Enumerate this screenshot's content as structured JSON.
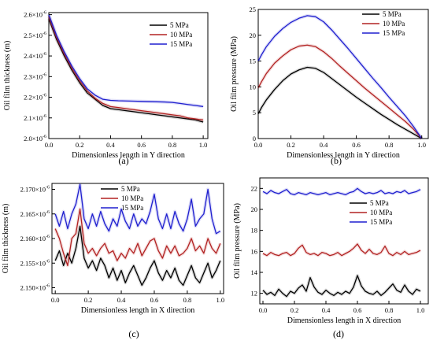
{
  "figure": {
    "panels": [
      {
        "id": "a",
        "label": "(a)"
      },
      {
        "id": "b",
        "label": "(b)"
      },
      {
        "id": "c",
        "label": "(c)"
      },
      {
        "id": "d",
        "label": "(d)"
      }
    ]
  },
  "chart_data": [
    {
      "type": "line",
      "panel": "(a)",
      "xlabel": "Dimensionless length in Y direction",
      "ylabel": "Oil film thickness (m)",
      "xlim": [
        0,
        1.03
      ],
      "ylim": [
        2.0,
        2.61
      ],
      "x_ticks": [
        0,
        0.2,
        0.4,
        0.6,
        0.8,
        1.0
      ],
      "x_tick_labels": [
        "0.0",
        "0.2",
        "0.4",
        "0.6",
        "0.8",
        "1.0"
      ],
      "y_ticks": [
        2.0,
        2.1,
        2.2,
        2.3,
        2.4,
        2.5,
        2.6
      ],
      "y_tick_mantissas": [
        "2.0×10",
        "2.1×10",
        "2.2×10",
        "2.3×10",
        "2.4×10",
        "2.5×10",
        "2.6×10"
      ],
      "y_tick_exponent": "-6",
      "legend_position": "top-right",
      "colors": [
        "#000000",
        "#b22222",
        "#1f1fcf"
      ],
      "series": [
        {
          "name": "5 MPa",
          "x": [
            0,
            0.05,
            0.1,
            0.15,
            0.2,
            0.25,
            0.3,
            0.35,
            0.4,
            0.45,
            0.5,
            0.55,
            0.6,
            0.65,
            0.7,
            0.75,
            0.8,
            0.85,
            0.9,
            0.95,
            1.0
          ],
          "values": [
            2.58,
            2.48,
            2.4,
            2.33,
            2.27,
            2.22,
            2.19,
            2.16,
            2.145,
            2.14,
            2.135,
            2.13,
            2.125,
            2.12,
            2.115,
            2.11,
            2.105,
            2.1,
            2.095,
            2.09,
            2.08
          ]
        },
        {
          "name": "10 MPa",
          "x": [
            0,
            0.05,
            0.1,
            0.15,
            0.2,
            0.25,
            0.3,
            0.35,
            0.4,
            0.45,
            0.5,
            0.55,
            0.6,
            0.65,
            0.7,
            0.75,
            0.8,
            0.85,
            0.9,
            0.95,
            1.0
          ],
          "values": [
            2.59,
            2.49,
            2.41,
            2.34,
            2.28,
            2.23,
            2.195,
            2.17,
            2.155,
            2.15,
            2.145,
            2.14,
            2.135,
            2.13,
            2.125,
            2.12,
            2.115,
            2.11,
            2.1,
            2.095,
            2.09
          ]
        },
        {
          "name": "15 MPa",
          "x": [
            0,
            0.05,
            0.1,
            0.15,
            0.2,
            0.25,
            0.3,
            0.35,
            0.4,
            0.45,
            0.5,
            0.55,
            0.6,
            0.65,
            0.7,
            0.75,
            0.8,
            0.85,
            0.9,
            0.95,
            1.0
          ],
          "values": [
            2.6,
            2.5,
            2.42,
            2.35,
            2.29,
            2.24,
            2.21,
            2.19,
            2.185,
            2.183,
            2.182,
            2.181,
            2.18,
            2.179,
            2.178,
            2.177,
            2.175,
            2.17,
            2.165,
            2.16,
            2.155
          ]
        }
      ]
    },
    {
      "type": "line",
      "panel": "(b)",
      "xlabel": "Dimensionless length in Y direction",
      "ylabel": "Oil film pressure (MPa)",
      "xlim": [
        0,
        1.04
      ],
      "ylim": [
        0,
        25
      ],
      "x_ticks": [
        0,
        0.2,
        0.4,
        0.6,
        0.8,
        1.0
      ],
      "x_tick_labels": [
        "0.0",
        "0.2",
        "0.4",
        "0.6",
        "0.8",
        "1.0"
      ],
      "y_ticks": [
        0,
        5,
        10,
        15,
        20,
        25
      ],
      "y_tick_labels": [
        "0",
        "5",
        "10",
        "15",
        "20",
        "25"
      ],
      "legend_position": "top-right",
      "colors": [
        "#000000",
        "#b22222",
        "#1f1fcf"
      ],
      "series": [
        {
          "name": "5 MPa",
          "x": [
            0,
            0.02,
            0.05,
            0.1,
            0.15,
            0.2,
            0.25,
            0.3,
            0.35,
            0.4,
            0.45,
            0.5,
            0.55,
            0.6,
            0.65,
            0.7,
            0.75,
            0.8,
            0.85,
            0.9,
            0.95,
            1.0
          ],
          "values": [
            4.8,
            6.0,
            7.5,
            9.5,
            11.2,
            12.5,
            13.3,
            13.8,
            13.6,
            12.8,
            11.6,
            10.4,
            9.2,
            8.0,
            6.9,
            5.8,
            4.7,
            3.7,
            2.7,
            1.8,
            0.9,
            0
          ]
        },
        {
          "name": "10 MPa",
          "x": [
            0,
            0.02,
            0.05,
            0.1,
            0.15,
            0.2,
            0.25,
            0.3,
            0.35,
            0.4,
            0.45,
            0.5,
            0.55,
            0.6,
            0.65,
            0.7,
            0.75,
            0.8,
            0.85,
            0.9,
            0.95,
            1.0
          ],
          "values": [
            9.8,
            11.0,
            12.6,
            14.6,
            16.0,
            17.2,
            17.9,
            18.1,
            17.8,
            16.8,
            15.5,
            14.0,
            12.6,
            11.2,
            9.8,
            8.5,
            7.2,
            5.9,
            4.6,
            3.3,
            1.8,
            0
          ]
        },
        {
          "name": "15 MPa",
          "x": [
            0,
            0.02,
            0.05,
            0.1,
            0.15,
            0.2,
            0.25,
            0.3,
            0.35,
            0.4,
            0.45,
            0.5,
            0.55,
            0.6,
            0.65,
            0.7,
            0.75,
            0.8,
            0.85,
            0.9,
            0.95,
            1.0
          ],
          "values": [
            15.0,
            16.2,
            17.8,
            19.8,
            21.3,
            22.5,
            23.3,
            23.8,
            23.6,
            22.6,
            21.0,
            19.2,
            17.4,
            15.5,
            13.6,
            11.7,
            9.9,
            8.0,
            6.2,
            4.4,
            2.3,
            0
          ]
        }
      ]
    },
    {
      "type": "line",
      "panel": "(c)",
      "xlabel": "Dimensionless length in X direction",
      "ylabel": "Oil film thickness (m)",
      "xlim": [
        -0.02,
        1.02
      ],
      "ylim": [
        2.1488,
        2.1712
      ],
      "x_ticks": [
        0,
        0.2,
        0.4,
        0.6,
        0.8,
        1.0
      ],
      "x_tick_labels": [
        "0.0",
        "0.2",
        "0.4",
        "0.6",
        "0.8",
        "1.0"
      ],
      "y_ticks": [
        2.15,
        2.155,
        2.16,
        2.165,
        2.17
      ],
      "y_tick_mantissas": [
        "2.150×10",
        "2.155×10",
        "2.160×10",
        "2.165×10",
        "2.170×10"
      ],
      "y_tick_exponent": "-6",
      "legend_position": "top-right",
      "colors": [
        "#000000",
        "#b22222",
        "#1f1fcf"
      ],
      "series": [
        {
          "name": "5 MPa",
          "x": [
            0,
            0.025,
            0.05,
            0.075,
            0.1,
            0.125,
            0.15,
            0.175,
            0.2,
            0.225,
            0.25,
            0.275,
            0.3,
            0.325,
            0.35,
            0.375,
            0.4,
            0.425,
            0.45,
            0.475,
            0.5,
            0.525,
            0.55,
            0.575,
            0.6,
            0.625,
            0.65,
            0.675,
            0.7,
            0.725,
            0.75,
            0.775,
            0.8,
            0.825,
            0.85,
            0.875,
            0.9,
            0.925,
            0.95,
            0.975,
            1.0
          ],
          "values": [
            2.1555,
            2.1575,
            2.1545,
            2.157,
            2.155,
            2.158,
            2.1625,
            2.156,
            2.154,
            2.1555,
            2.1535,
            2.156,
            2.1545,
            2.152,
            2.154,
            2.1515,
            2.1535,
            2.151,
            2.153,
            2.1545,
            2.1525,
            2.1505,
            2.152,
            2.154,
            2.1555,
            2.153,
            2.1515,
            2.1535,
            2.152,
            2.154,
            2.1515,
            2.1505,
            2.1525,
            2.1545,
            2.152,
            2.151,
            2.153,
            2.155,
            2.152,
            2.1535,
            2.1555
          ]
        },
        {
          "name": "10 MPa",
          "x": [
            0,
            0.025,
            0.05,
            0.075,
            0.1,
            0.125,
            0.15,
            0.175,
            0.2,
            0.225,
            0.25,
            0.275,
            0.3,
            0.325,
            0.35,
            0.375,
            0.4,
            0.425,
            0.45,
            0.475,
            0.5,
            0.525,
            0.55,
            0.575,
            0.6,
            0.625,
            0.65,
            0.675,
            0.7,
            0.725,
            0.75,
            0.775,
            0.8,
            0.825,
            0.85,
            0.875,
            0.9,
            0.925,
            0.95,
            0.975,
            1.0
          ],
          "values": [
            2.162,
            2.16,
            2.157,
            2.1545,
            2.16,
            2.161,
            2.166,
            2.159,
            2.157,
            2.158,
            2.1565,
            2.158,
            2.159,
            2.157,
            2.1575,
            2.1555,
            2.157,
            2.156,
            2.158,
            2.157,
            2.159,
            2.1565,
            2.158,
            2.1595,
            2.16,
            2.1575,
            2.156,
            2.1585,
            2.157,
            2.1585,
            2.1565,
            2.157,
            2.158,
            2.16,
            2.1575,
            2.1585,
            2.157,
            2.16,
            2.158,
            2.157,
            2.159
          ]
        },
        {
          "name": "15 MPa",
          "x": [
            0,
            0.025,
            0.05,
            0.075,
            0.1,
            0.125,
            0.15,
            0.175,
            0.2,
            0.225,
            0.25,
            0.275,
            0.3,
            0.325,
            0.35,
            0.375,
            0.4,
            0.425,
            0.45,
            0.475,
            0.5,
            0.525,
            0.55,
            0.575,
            0.6,
            0.625,
            0.65,
            0.675,
            0.7,
            0.725,
            0.75,
            0.775,
            0.8,
            0.825,
            0.85,
            0.875,
            0.9,
            0.925,
            0.95,
            0.975,
            1.0
          ],
          "values": [
            2.165,
            2.1625,
            2.1655,
            2.162,
            2.165,
            2.167,
            2.171,
            2.164,
            2.162,
            2.165,
            2.1625,
            2.1655,
            2.163,
            2.1615,
            2.164,
            2.1625,
            2.166,
            2.1635,
            2.162,
            2.165,
            2.1625,
            2.164,
            2.163,
            2.1655,
            2.169,
            2.164,
            2.162,
            2.165,
            2.162,
            2.1655,
            2.163,
            2.1615,
            2.164,
            2.168,
            2.1625,
            2.164,
            2.165,
            2.17,
            2.164,
            2.161,
            2.1615
          ]
        }
      ]
    },
    {
      "type": "line",
      "panel": "(d)",
      "xlabel": "Dimensionless length in X direction",
      "ylabel": "Oil film pressure (MPa)",
      "xlim": [
        -0.02,
        1.05
      ],
      "ylim": [
        11,
        23
      ],
      "x_ticks": [
        0,
        0.2,
        0.4,
        0.6,
        0.8,
        1.0
      ],
      "x_tick_labels": [
        "0.0",
        "0.2",
        "0.4",
        "0.6",
        "0.8",
        "1.0"
      ],
      "y_ticks": [
        12,
        14,
        16,
        18,
        20,
        22
      ],
      "y_tick_labels": [
        "12",
        "14",
        "16",
        "18",
        "20",
        "22"
      ],
      "legend_position": "center-right",
      "colors": [
        "#000000",
        "#b22222",
        "#1f1fcf"
      ],
      "series": [
        {
          "name": "5 MPa",
          "x": [
            0,
            0.025,
            0.05,
            0.075,
            0.1,
            0.125,
            0.15,
            0.175,
            0.2,
            0.225,
            0.25,
            0.275,
            0.3,
            0.325,
            0.35,
            0.375,
            0.4,
            0.425,
            0.45,
            0.475,
            0.5,
            0.525,
            0.55,
            0.575,
            0.6,
            0.625,
            0.65,
            0.675,
            0.7,
            0.725,
            0.75,
            0.775,
            0.8,
            0.825,
            0.85,
            0.875,
            0.9,
            0.925,
            0.95,
            0.975,
            1.0
          ],
          "values": [
            12.3,
            11.9,
            12.1,
            11.8,
            12.4,
            12.0,
            11.7,
            12.2,
            12.0,
            12.5,
            12.8,
            12.2,
            13.5,
            12.6,
            12.1,
            11.9,
            12.3,
            12.0,
            11.8,
            12.1,
            11.9,
            12.2,
            12.0,
            12.6,
            13.7,
            12.7,
            12.2,
            12.0,
            11.9,
            12.2,
            11.8,
            12.1,
            12.5,
            12.9,
            12.3,
            12.1,
            12.8,
            12.2,
            11.9,
            12.4,
            12.2
          ]
        },
        {
          "name": "10 MPa",
          "x": [
            0,
            0.025,
            0.05,
            0.075,
            0.1,
            0.125,
            0.15,
            0.175,
            0.2,
            0.225,
            0.25,
            0.275,
            0.3,
            0.325,
            0.35,
            0.375,
            0.4,
            0.425,
            0.45,
            0.475,
            0.5,
            0.525,
            0.55,
            0.575,
            0.6,
            0.625,
            0.65,
            0.675,
            0.7,
            0.725,
            0.75,
            0.775,
            0.8,
            0.825,
            0.85,
            0.875,
            0.9,
            0.925,
            0.95,
            0.975,
            1.0
          ],
          "values": [
            15.8,
            15.6,
            15.9,
            15.7,
            15.6,
            15.8,
            15.9,
            15.6,
            15.8,
            16.3,
            16.6,
            15.9,
            15.7,
            15.8,
            15.6,
            15.9,
            15.8,
            15.6,
            15.7,
            15.9,
            15.6,
            15.8,
            16.0,
            16.3,
            16.7,
            16.1,
            15.8,
            16.2,
            15.8,
            15.7,
            15.9,
            16.5,
            15.8,
            15.6,
            15.9,
            15.7,
            16.0,
            15.7,
            15.8,
            15.9,
            16.1
          ]
        },
        {
          "name": "15 MPa",
          "x": [
            0,
            0.025,
            0.05,
            0.075,
            0.1,
            0.125,
            0.15,
            0.175,
            0.2,
            0.225,
            0.25,
            0.275,
            0.3,
            0.325,
            0.35,
            0.375,
            0.4,
            0.425,
            0.45,
            0.475,
            0.5,
            0.525,
            0.55,
            0.575,
            0.6,
            0.625,
            0.65,
            0.675,
            0.7,
            0.725,
            0.75,
            0.775,
            0.8,
            0.825,
            0.85,
            0.875,
            0.9,
            0.925,
            0.95,
            0.975,
            1.0
          ],
          "values": [
            21.7,
            21.5,
            21.8,
            21.6,
            21.5,
            21.7,
            21.9,
            21.5,
            21.4,
            21.6,
            21.5,
            21.4,
            21.6,
            21.5,
            21.4,
            21.5,
            21.6,
            21.4,
            21.5,
            21.6,
            21.5,
            21.4,
            21.6,
            21.7,
            22.0,
            21.7,
            21.5,
            21.6,
            21.5,
            21.6,
            21.8,
            21.5,
            21.6,
            21.5,
            21.7,
            21.6,
            21.8,
            21.5,
            21.6,
            21.7,
            21.9
          ]
        }
      ]
    }
  ]
}
